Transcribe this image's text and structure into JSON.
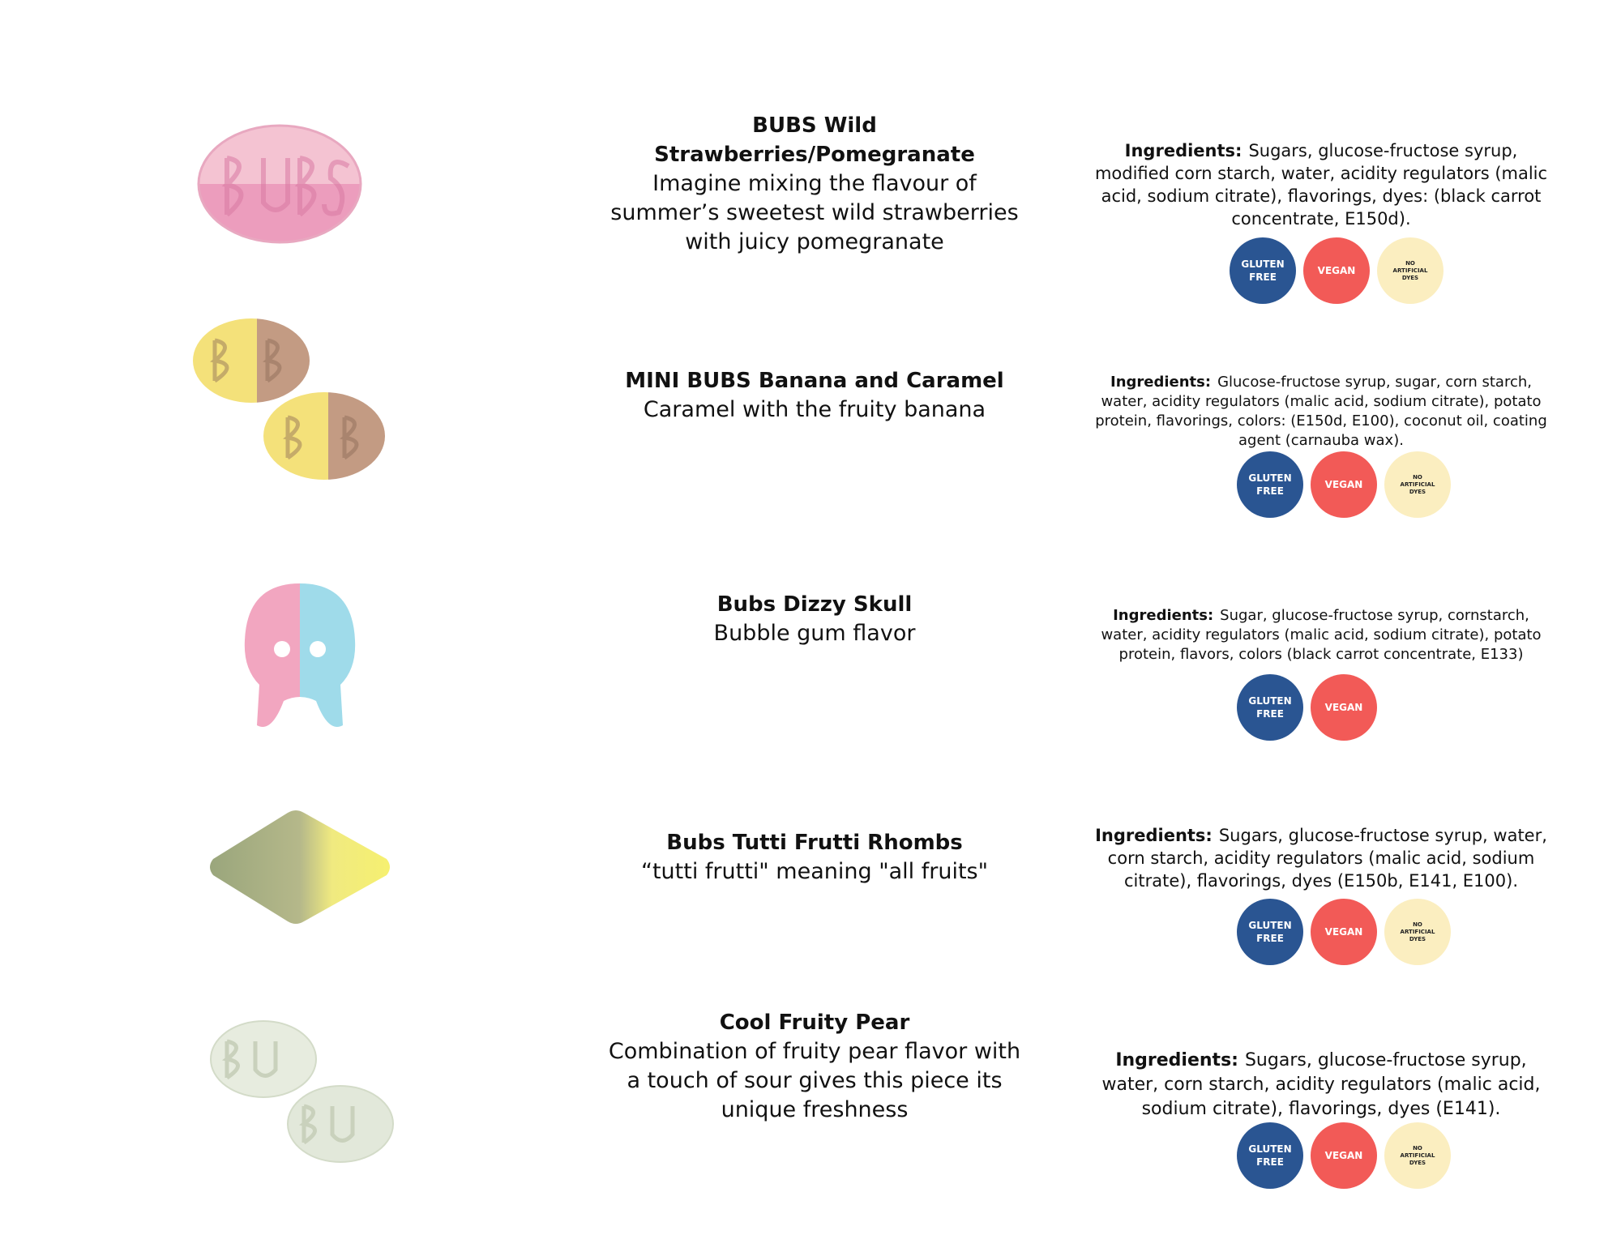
{
  "colors": {
    "gluten_free": "#2a5592",
    "vegan": "#f25a57",
    "no_artificial_dyes": "#fbeec0"
  },
  "badge_labels": {
    "gluten_free": "GLUTEN\nFREE",
    "vegan": "VEGAN",
    "no_artificial_dyes": "NO\nARTIFICIAL\nDYES"
  },
  "ingredients_label": "Ingredients:",
  "products": [
    {
      "name": "BUBS Wild Strawberries/Pomegranate",
      "tagline": "Imagine mixing the flavour of summer’s sweetest wild strawberries with juicy pomegranate",
      "ingredients": "Sugars, glucose-fructose syrup, modified corn starch, water, acidity regulators (malic acid, sodium citrate), flavorings, dyes: (black carrot concentrate, E150d).",
      "candy_icon": "strawberry-pomegranate-bubs-candy-icon"
    },
    {
      "name": "MINI BUBS Banana and Caramel",
      "tagline": "Caramel with the fruity banana",
      "ingredients": "Glucose-fructose syrup, sugar, corn starch, water, acidity regulators (malic acid, sodium citrate), potato protein, flavorings, colors: (E150d, E100), coconut oil, coating agent (carnauba wax).",
      "candy_icon": "banana-caramel-bubs-candy-icon"
    },
    {
      "name": "Bubs Dizzy Skull",
      "tagline": "Bubble gum flavor",
      "ingredients": "Sugar, glucose-fructose syrup, cornstarch, water, acidity regulators (malic acid, sodium citrate), potato protein, flavors, colors (black carrot concentrate, E133)",
      "candy_icon": "dizzy-skull-candy-icon"
    },
    {
      "name": "Bubs Tutti Frutti Rhombs",
      "tagline": "“tutti frutti\" meaning \"all fruits\"",
      "ingredients": "Sugars, glucose-fructose syrup, water, corn starch, acidity regulators (malic acid, sodium citrate), flavorings, dyes (E150b, E141, E100).",
      "candy_icon": "tutti-frutti-rhomb-candy-icon"
    },
    {
      "name": "Cool Fruity Pear",
      "tagline": "Combination of fruity pear flavor with a touch of sour gives this piece its unique freshness",
      "ingredients": "Sugars, glucose-fructose syrup, water, corn starch, acidity regulators (malic acid, sodium citrate), flavorings, dyes (E141).",
      "candy_icon": "pear-bubs-candy-icon"
    }
  ]
}
